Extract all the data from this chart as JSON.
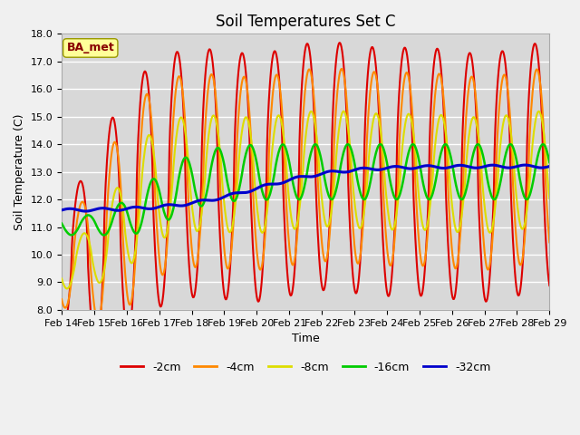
{
  "title": "Soil Temperatures Set C",
  "xlabel": "Time",
  "ylabel": "Soil Temperature (C)",
  "ylim": [
    8.0,
    18.0
  ],
  "yticks": [
    8.0,
    9.0,
    10.0,
    11.0,
    12.0,
    13.0,
    14.0,
    15.0,
    16.0,
    17.0,
    18.0
  ],
  "xtick_labels": [
    "Feb 14",
    "Feb 15",
    "Feb 16",
    "Feb 17",
    "Feb 18",
    "Feb 19",
    "Feb 20",
    "Feb 21",
    "Feb 22",
    "Feb 23",
    "Feb 24",
    "Feb 25",
    "Feb 26",
    "Feb 27",
    "Feb 28",
    "Feb 29"
  ],
  "legend_labels": [
    "-2cm",
    "-4cm",
    "-8cm",
    "-16cm",
    "-32cm"
  ],
  "line_colors": [
    "#dd0000",
    "#ff8800",
    "#dddd00",
    "#00cc00",
    "#0000cc"
  ],
  "line_widths": [
    1.5,
    1.5,
    1.5,
    1.8,
    2.2
  ],
  "bg_color": "#e8e8e8",
  "plot_bg_color": "#d8d8d8",
  "annotation_text": "BA_met",
  "annotation_box_color": "#ffff99",
  "annotation_text_color": "#880000",
  "title_fontsize": 12,
  "label_fontsize": 9,
  "tick_fontsize": 8
}
